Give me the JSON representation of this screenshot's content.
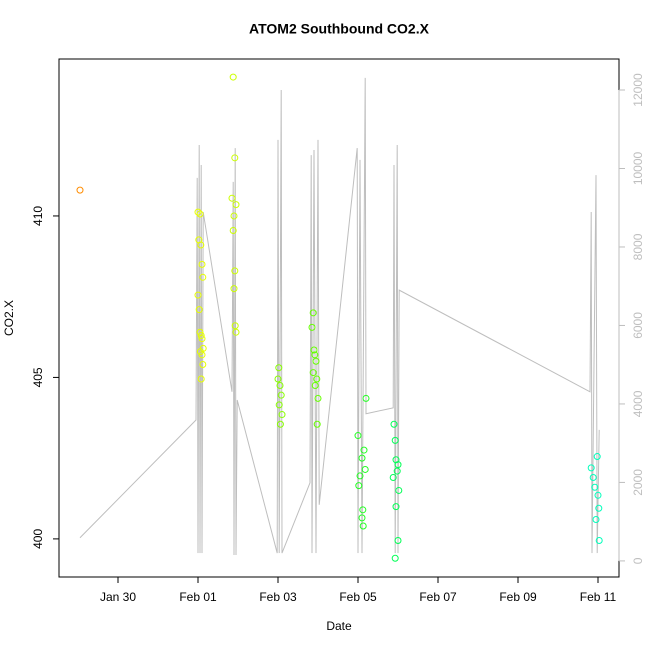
{
  "chart_data": {
    "type": "scatter",
    "title": "ATOM2 Southbound CO2.X",
    "x_label": "Date",
    "y_label": "CO2.X",
    "xlim": [
      28.525,
      42.525
    ],
    "xticks": [
      {
        "value": 30,
        "label": "Jan 30"
      },
      {
        "value": 32,
        "label": "Feb 01"
      },
      {
        "value": 34,
        "label": "Feb 03"
      },
      {
        "value": 36,
        "label": "Feb 05"
      },
      {
        "value": 38,
        "label": "Feb 07"
      },
      {
        "value": 40,
        "label": "Feb 09"
      },
      {
        "value": 42,
        "label": "Feb 11"
      }
    ],
    "ylim": [
      398.82,
      414.86
    ],
    "yticks": [
      400,
      405,
      410
    ],
    "y2lim": [
      -410,
      12790
    ],
    "y2ticks": [
      0,
      2000,
      4000,
      6000,
      8000,
      10000,
      12000
    ],
    "y2_tick_color": "#bebebe",
    "series": [
      {
        "type": "line",
        "axis": "y2",
        "color": "#bebebe",
        "x": [
          29.05,
          31.95,
          31.98,
          32.0,
          32.03,
          32.05,
          32.08,
          32.1,
          32.13,
          32.85,
          32.88,
          32.9,
          32.93,
          32.95,
          32.98,
          33.98,
          34.0,
          34.03,
          34.08,
          34.1,
          34.8,
          34.83,
          34.85,
          34.9,
          34.95,
          35.0,
          35.03,
          35.98,
          36.0,
          36.05,
          36.1,
          36.18,
          36.2,
          36.88,
          36.9,
          36.93,
          36.98,
          37.0,
          37.03,
          41.8,
          41.83,
          41.85,
          41.95,
          41.98,
          42.03
        ],
        "values": [
          590,
          3590,
          9760,
          200,
          10600,
          200,
          10090,
          200,
          8890,
          4310,
          9660,
          150,
          10520,
          150,
          4100,
          200,
          10730,
          200,
          12000,
          200,
          1990,
          10340,
          200,
          10470,
          200,
          10730,
          1430,
          10520,
          200,
          10220,
          200,
          12310,
          3750,
          3900,
          10090,
          200,
          10600,
          200,
          6900,
          4310,
          8890,
          200,
          9830,
          200,
          3340
        ]
      },
      {
        "type": "scatter",
        "color": "#ff8c00",
        "x": [
          29.05
        ],
        "values": [
          410.8
        ]
      },
      {
        "type": "scatter",
        "color": "#e6ff00",
        "x": [
          32.0,
          32.05,
          32.02,
          32.07,
          32.1,
          32.12,
          32.0,
          32.03,
          32.05,
          32.08,
          32.1,
          32.13,
          32.06,
          32.1,
          32.12,
          32.08
        ],
        "values": [
          410.12,
          410.06,
          409.26,
          409.1,
          408.5,
          408.1,
          407.55,
          407.1,
          406.4,
          406.3,
          406.2,
          405.9,
          405.8,
          405.7,
          405.4,
          404.95
        ]
      },
      {
        "type": "scatter",
        "color": "#ccff00",
        "x": [
          32.88,
          32.92,
          32.85,
          32.95,
          32.9,
          32.88,
          32.92,
          32.9,
          32.93,
          32.95
        ],
        "values": [
          414.3,
          411.8,
          410.55,
          410.35,
          410.0,
          409.55,
          408.3,
          407.75,
          406.6,
          406.4
        ]
      },
      {
        "type": "scatter",
        "color": "#88ff00",
        "x": [
          34.02,
          34.0,
          34.05,
          34.08,
          34.03,
          34.1,
          34.06
        ],
        "values": [
          405.3,
          404.95,
          404.75,
          404.45,
          404.15,
          403.85,
          403.55
        ]
      },
      {
        "type": "scatter",
        "color": "#66ff00",
        "x": [
          34.88,
          34.85,
          34.9,
          34.92,
          34.95,
          34.88,
          34.97,
          34.93,
          35.0,
          34.98
        ],
        "values": [
          407.0,
          406.55,
          405.85,
          405.7,
          405.5,
          405.15,
          404.95,
          404.75,
          404.35,
          403.55
        ]
      },
      {
        "type": "scatter",
        "color": "#22ff22",
        "x": [
          36.2,
          36.0,
          36.15,
          36.1,
          36.18,
          36.05,
          36.02,
          36.12,
          36.1,
          36.13
        ],
        "values": [
          404.35,
          403.2,
          402.75,
          402.5,
          402.15,
          401.95,
          401.65,
          400.9,
          400.65,
          400.4
        ]
      },
      {
        "type": "scatter",
        "color": "#00ff55",
        "x": [
          36.9,
          36.93,
          36.95,
          37.0,
          36.98,
          36.88,
          37.02,
          36.95,
          37.0,
          36.93
        ],
        "values": [
          403.55,
          403.05,
          402.45,
          402.3,
          402.1,
          401.9,
          401.5,
          401.0,
          399.95,
          399.4
        ]
      },
      {
        "type": "scatter",
        "color": "#00ffbb",
        "x": [
          41.98,
          41.83,
          41.88,
          41.92,
          42.0,
          42.02,
          41.95,
          42.03
        ],
        "values": [
          402.55,
          402.2,
          401.9,
          401.6,
          401.35,
          400.95,
          400.6,
          399.95
        ]
      }
    ]
  }
}
